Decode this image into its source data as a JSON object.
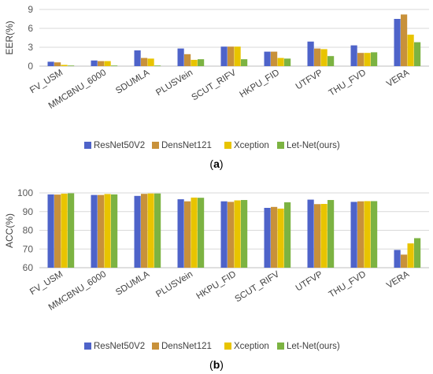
{
  "figure": {
    "colors": [
      "#4e63c9",
      "#c8913a",
      "#e8c400",
      "#7cb342"
    ]
  },
  "chart_data": [
    {
      "type": "bar",
      "panel_label": "(a)",
      "categories": [
        "FV_USM",
        "MMCBNU_6000",
        "SDUMLA",
        "PLUSVein",
        "SCUT_RIFV",
        "HKPU_FID",
        "UTFVP",
        "THU_FVD",
        "VERA"
      ],
      "series": [
        {
          "name": "ResNet50V2",
          "values": [
            0.7,
            0.9,
            2.5,
            2.8,
            3.1,
            2.3,
            3.9,
            3.3,
            7.5
          ]
        },
        {
          "name": "DensNet121",
          "values": [
            0.6,
            0.8,
            1.3,
            1.9,
            3.1,
            2.3,
            2.8,
            2.1,
            8.2
          ]
        },
        {
          "name": "Xception",
          "values": [
            0.2,
            0.8,
            1.2,
            1.0,
            3.1,
            1.3,
            2.7,
            2.1,
            5.0
          ]
        },
        {
          "name": "Let-Net(ours)",
          "values": [
            0.1,
            0.1,
            0.1,
            1.1,
            1.1,
            1.2,
            1.6,
            2.2,
            3.8
          ]
        }
      ],
      "xlabel": "",
      "ylabel": "EER(%)",
      "ylim": [
        0,
        9
      ],
      "yticks": [
        "0",
        "3",
        "6",
        "9"
      ],
      "grid": true,
      "legend_position": "bottom"
    },
    {
      "type": "bar",
      "panel_label": "(b)",
      "categories": [
        "FV_USM",
        "MMCBNU_6000",
        "SDUMLA",
        "PLUSVein",
        "HKPU_FID",
        "SCUT_RIFV",
        "UTFVP",
        "THU_FVD",
        "VERA"
      ],
      "series": [
        {
          "name": "ResNet50V2",
          "values": [
            99.2,
            98.9,
            98.4,
            96.6,
            95.5,
            92.0,
            96.4,
            95.2,
            69.5
          ]
        },
        {
          "name": "DensNet121",
          "values": [
            99.1,
            98.9,
            99.5,
            95.5,
            95.2,
            92.5,
            94.0,
            95.5,
            67.0
          ]
        },
        {
          "name": "Xception",
          "values": [
            99.6,
            99.4,
            99.7,
            97.5,
            96.0,
            91.6,
            94.1,
            95.6,
            73.0
          ]
        },
        {
          "name": "Let-Net(ours)",
          "values": [
            99.8,
            99.2,
            99.7,
            97.4,
            96.2,
            95.0,
            96.2,
            95.6,
            75.8
          ]
        }
      ],
      "xlabel": "",
      "ylabel": "ACC(%)",
      "ylim": [
        60,
        100
      ],
      "yticks": [
        "60",
        "70",
        "80",
        "90",
        "100"
      ],
      "grid": true,
      "legend_position": "bottom"
    }
  ]
}
